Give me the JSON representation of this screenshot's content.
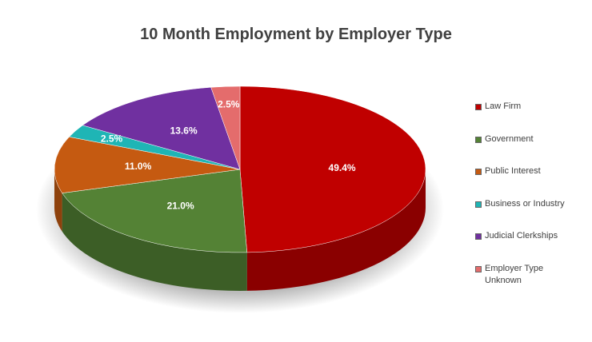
{
  "chart_data": {
    "type": "pie",
    "title": "10 Month Employment by Employer Type",
    "categories": [
      "Law Firm",
      "Government",
      "Public Interest",
      "Business or Industry",
      "Judicial Clerkships",
      "Employer Type Unknown"
    ],
    "values": [
      49.4,
      21.0,
      11.0,
      2.5,
      13.6,
      2.5
    ],
    "value_labels": [
      "49.4%",
      "21.0%",
      "11.0%",
      "2.5%",
      "13.6%",
      "2.5%"
    ],
    "colors": [
      "#c00000",
      "#548235",
      "#c55a11",
      "#1fb5b5",
      "#7030a0",
      "#e46c6c"
    ],
    "legend": "right"
  }
}
